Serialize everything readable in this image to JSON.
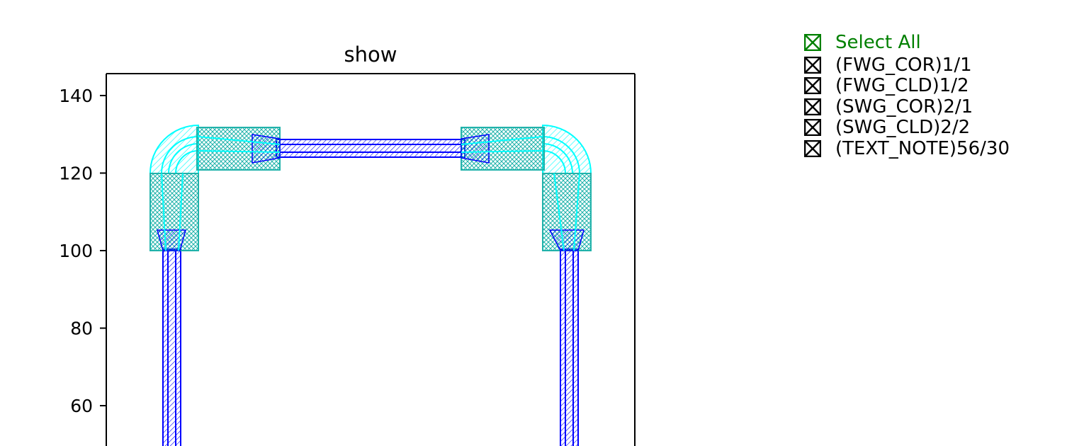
{
  "chart_data": {
    "type": "layout",
    "title": "show",
    "xlim": [
      -5,
      130
    ],
    "ylim": [
      46,
      146
    ],
    "yticks": [
      60,
      80,
      100,
      120,
      140
    ],
    "colors": {
      "core": "#0000ff",
      "bend": "#00ffff",
      "taper": "#20b2aa",
      "axes": "#000000"
    },
    "layers": [
      {
        "name": "FWG_COR",
        "number": "1/1"
      },
      {
        "name": "FWG_CLD",
        "number": "1/2"
      },
      {
        "name": "SWG_COR",
        "number": "2/1"
      },
      {
        "name": "SWG_CLD",
        "number": "2/2"
      },
      {
        "name": "TEXT_NOTE",
        "number": "56/30"
      }
    ],
    "waveguides": [
      {
        "kind": "straight",
        "x": [
          10,
          10
        ],
        "y": [
          46,
          100
        ],
        "layer": "FWG_COR"
      },
      {
        "kind": "straight",
        "x": [
          112,
          112
        ],
        "y": [
          46,
          100
        ],
        "layer": "FWG_COR"
      },
      {
        "kind": "straight",
        "x": [
          43,
          91
        ],
        "y": [
          126,
          126
        ],
        "layer": "FWG_COR"
      },
      {
        "kind": "bend",
        "center": [
          20,
          120
        ],
        "radius": 10,
        "quadrant": "top-left",
        "layer": "SWG_CLD"
      },
      {
        "kind": "bend",
        "center": [
          102,
          120
        ],
        "radius": 10,
        "quadrant": "top-right",
        "layer": "SWG_CLD"
      },
      {
        "kind": "taper",
        "x": [
          7,
          13
        ],
        "y": [
          100,
          120
        ],
        "layer": "SWG_COR"
      },
      {
        "kind": "taper",
        "x": [
          109,
          115
        ],
        "y": [
          100,
          120
        ],
        "layer": "SWG_COR"
      },
      {
        "kind": "taper",
        "x": [
          19,
          40
        ],
        "y": [
          120,
          131.5
        ],
        "layer": "SWG_COR"
      },
      {
        "kind": "taper",
        "x": [
          86,
          107
        ],
        "y": [
          120,
          131.5
        ],
        "layer": "SWG_COR"
      }
    ]
  },
  "legend": {
    "select_all": "Select All",
    "items": [
      "(FWG_COR)1/1",
      "(FWG_CLD)1/2",
      "(SWG_COR)2/1",
      "(SWG_CLD)2/2",
      "(TEXT_NOTE)56/30"
    ]
  }
}
